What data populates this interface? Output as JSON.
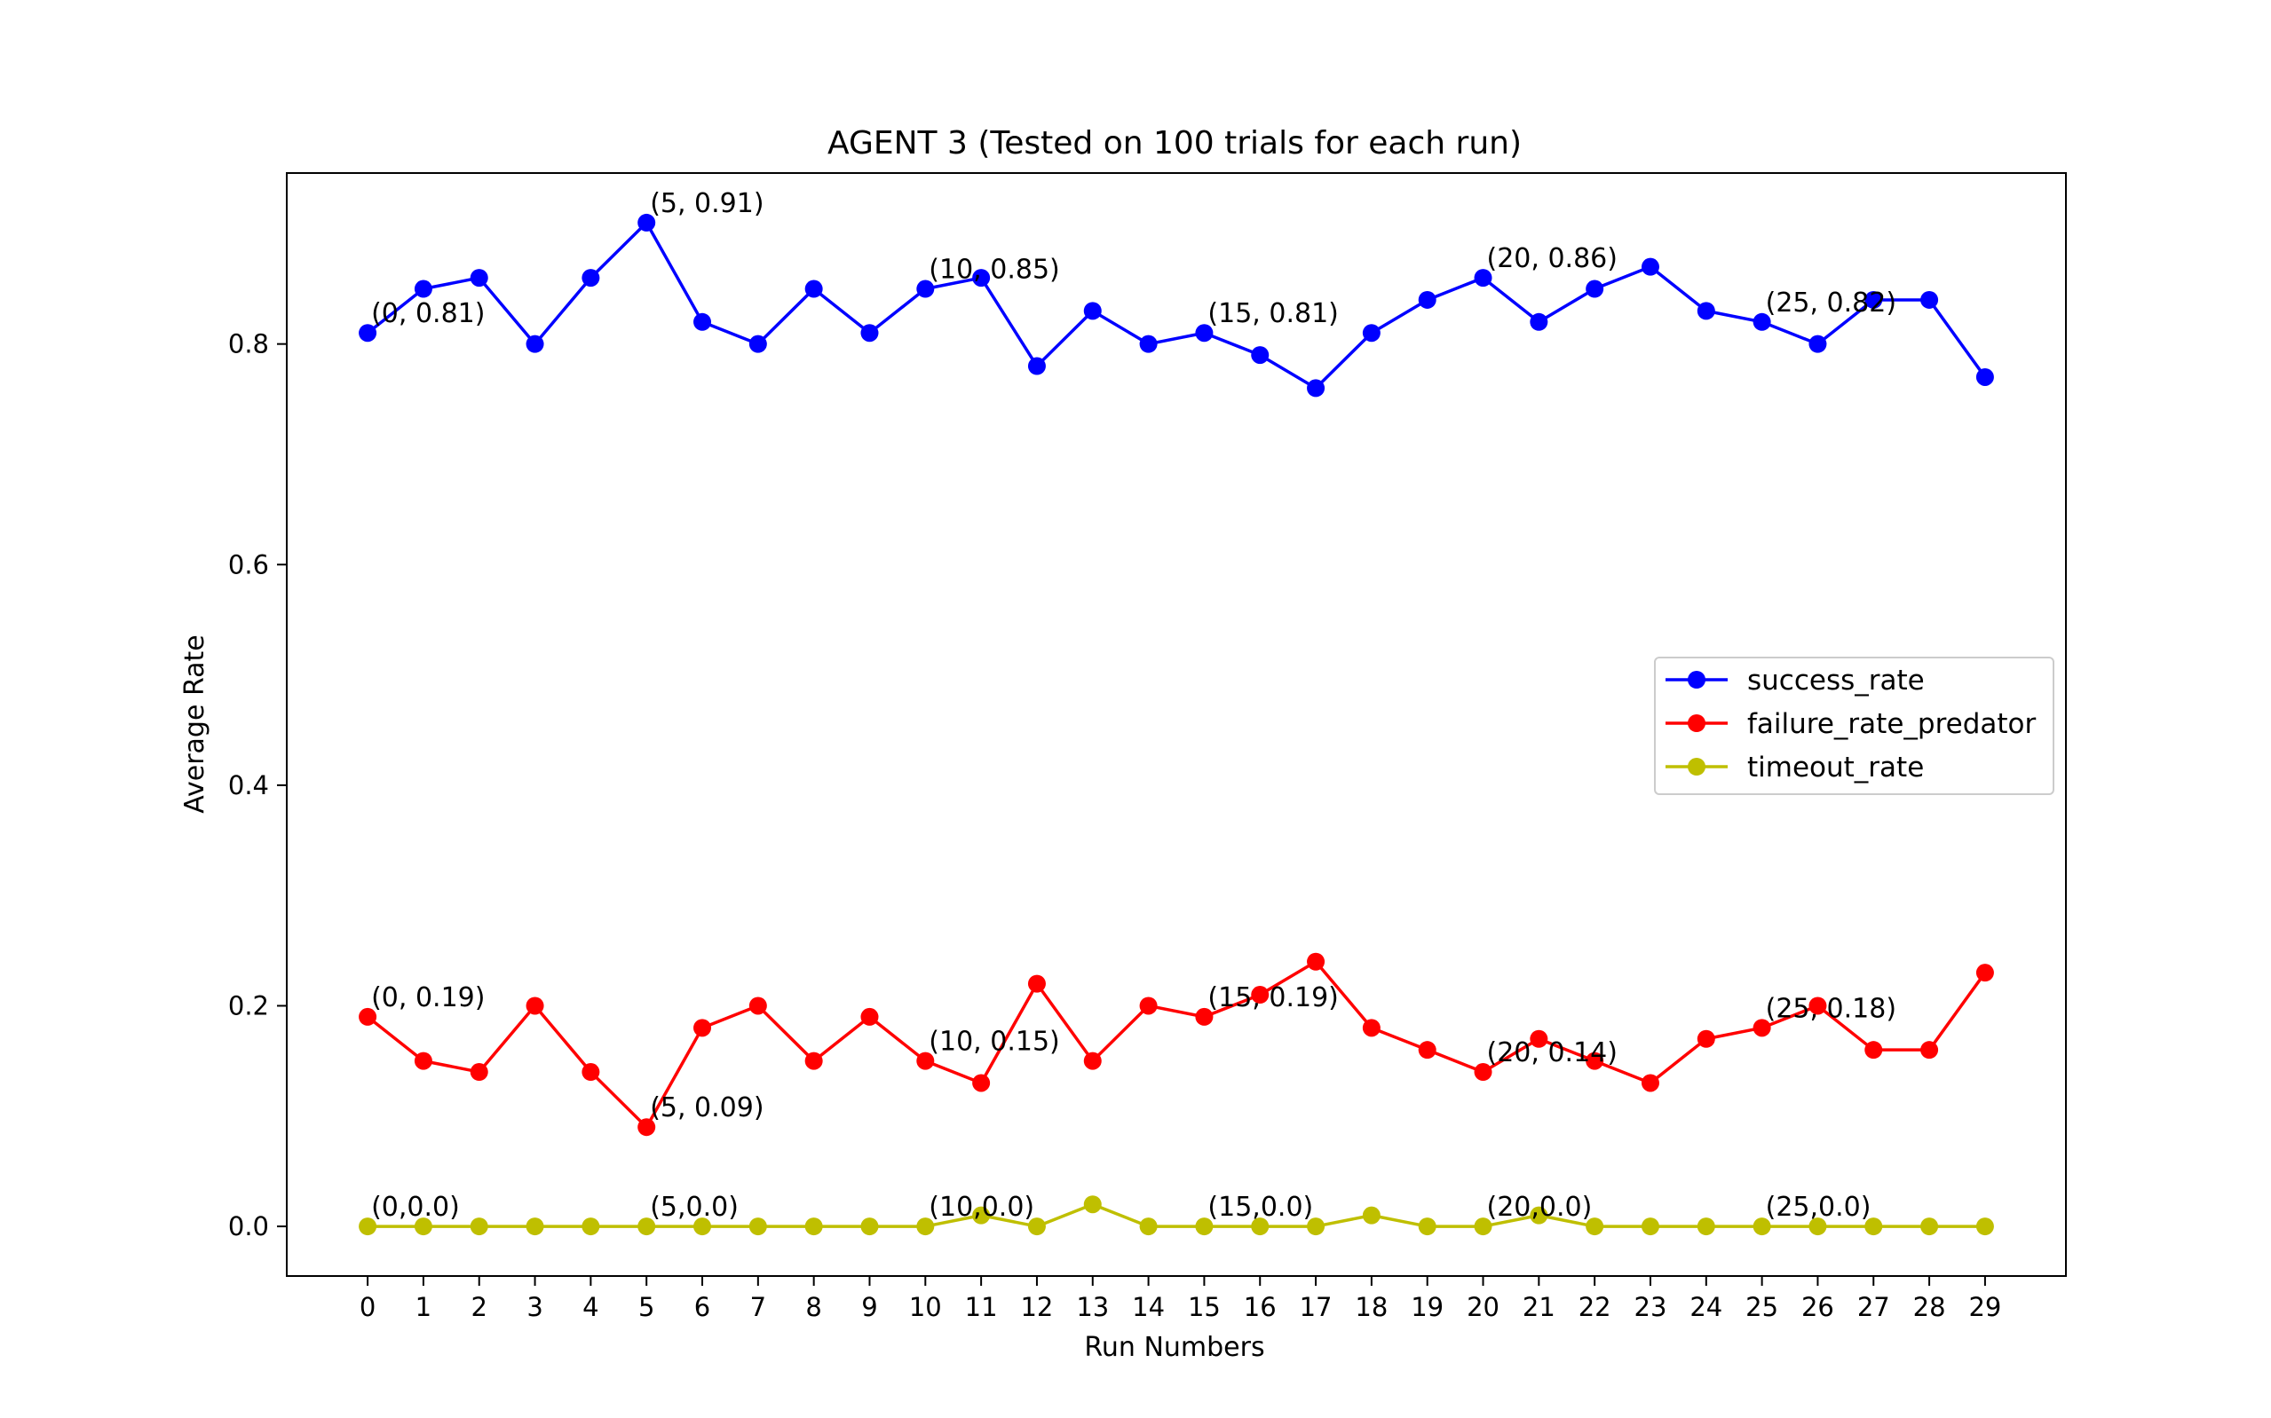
{
  "chart_data": {
    "type": "line",
    "title": "AGENT 3 (Tested on 100 trials for each run)",
    "xlabel": "Run Numbers",
    "ylabel": "Average Rate",
    "x": [
      0,
      1,
      2,
      3,
      4,
      5,
      6,
      7,
      8,
      9,
      10,
      11,
      12,
      13,
      14,
      15,
      16,
      17,
      18,
      19,
      20,
      21,
      22,
      23,
      24,
      25,
      26,
      27,
      28,
      29
    ],
    "xticks": [
      "0",
      "1",
      "2",
      "3",
      "4",
      "5",
      "6",
      "7",
      "8",
      "9",
      "10",
      "11",
      "12",
      "13",
      "14",
      "15",
      "16",
      "17",
      "18",
      "19",
      "20",
      "21",
      "22",
      "23",
      "24",
      "25",
      "26",
      "27",
      "28",
      "29"
    ],
    "yticks": [
      "0.0",
      "0.2",
      "0.4",
      "0.6",
      "0.8"
    ],
    "ylim": [
      -0.045,
      0.955
    ],
    "xlim": [
      -1.45,
      30.45
    ],
    "grid": false,
    "legend_position": "center-right",
    "series": [
      {
        "name": "success_rate",
        "color": "#0000ff",
        "values": [
          0.81,
          0.85,
          0.86,
          0.8,
          0.86,
          0.91,
          0.82,
          0.8,
          0.85,
          0.81,
          0.85,
          0.86,
          0.78,
          0.83,
          0.8,
          0.81,
          0.79,
          0.76,
          0.81,
          0.84,
          0.86,
          0.82,
          0.85,
          0.87,
          0.83,
          0.82,
          0.8,
          0.84,
          0.84,
          0.77
        ]
      },
      {
        "name": "failure_rate_predator",
        "color": "#ff0000",
        "values": [
          0.19,
          0.15,
          0.14,
          0.2,
          0.14,
          0.09,
          0.18,
          0.2,
          0.15,
          0.19,
          0.15,
          0.13,
          0.22,
          0.15,
          0.2,
          0.19,
          0.21,
          0.24,
          0.18,
          0.16,
          0.14,
          0.17,
          0.15,
          0.13,
          0.17,
          0.18,
          0.2,
          0.16,
          0.16,
          0.23
        ]
      },
      {
        "name": "timeout_rate",
        "color": "#bfbf00",
        "values": [
          0.0,
          0.0,
          0.0,
          0.0,
          0.0,
          0.0,
          0.0,
          0.0,
          0.0,
          0.0,
          0.0,
          0.01,
          0.0,
          0.02,
          0.0,
          0.0,
          0.0,
          0.0,
          0.01,
          0.0,
          0.0,
          0.01,
          0.0,
          0.0,
          0.0,
          0.0,
          0.0,
          0.0,
          0.0,
          0.0
        ]
      }
    ],
    "annotations": [
      {
        "text": "(0, 0.81)",
        "x": 0,
        "y": 0.81
      },
      {
        "text": "(5, 0.91)",
        "x": 5,
        "y": 0.91
      },
      {
        "text": "(10, 0.85)",
        "x": 10,
        "y": 0.85
      },
      {
        "text": "(15, 0.81)",
        "x": 15,
        "y": 0.81
      },
      {
        "text": "(20, 0.86)",
        "x": 20,
        "y": 0.86
      },
      {
        "text": "(25, 0.82)",
        "x": 25,
        "y": 0.82
      },
      {
        "text": "(0, 0.19)",
        "x": 0,
        "y": 0.19
      },
      {
        "text": "(5, 0.09)",
        "x": 5,
        "y": 0.09
      },
      {
        "text": "(10, 0.15)",
        "x": 10,
        "y": 0.15
      },
      {
        "text": "(15, 0.19)",
        "x": 15,
        "y": 0.19
      },
      {
        "text": "(20, 0.14)",
        "x": 20,
        "y": 0.14
      },
      {
        "text": "(25, 0.18)",
        "x": 25,
        "y": 0.18
      },
      {
        "text": "(0,0.0)",
        "x": 0,
        "y": 0.0
      },
      {
        "text": "(5,0.0)",
        "x": 5,
        "y": 0.0
      },
      {
        "text": "(10,0.0)",
        "x": 10,
        "y": 0.0
      },
      {
        "text": "(15,0.0)",
        "x": 15,
        "y": 0.0
      },
      {
        "text": "(20,0.0)",
        "x": 20,
        "y": 0.0
      },
      {
        "text": "(25,0.0)",
        "x": 25,
        "y": 0.0
      }
    ]
  }
}
